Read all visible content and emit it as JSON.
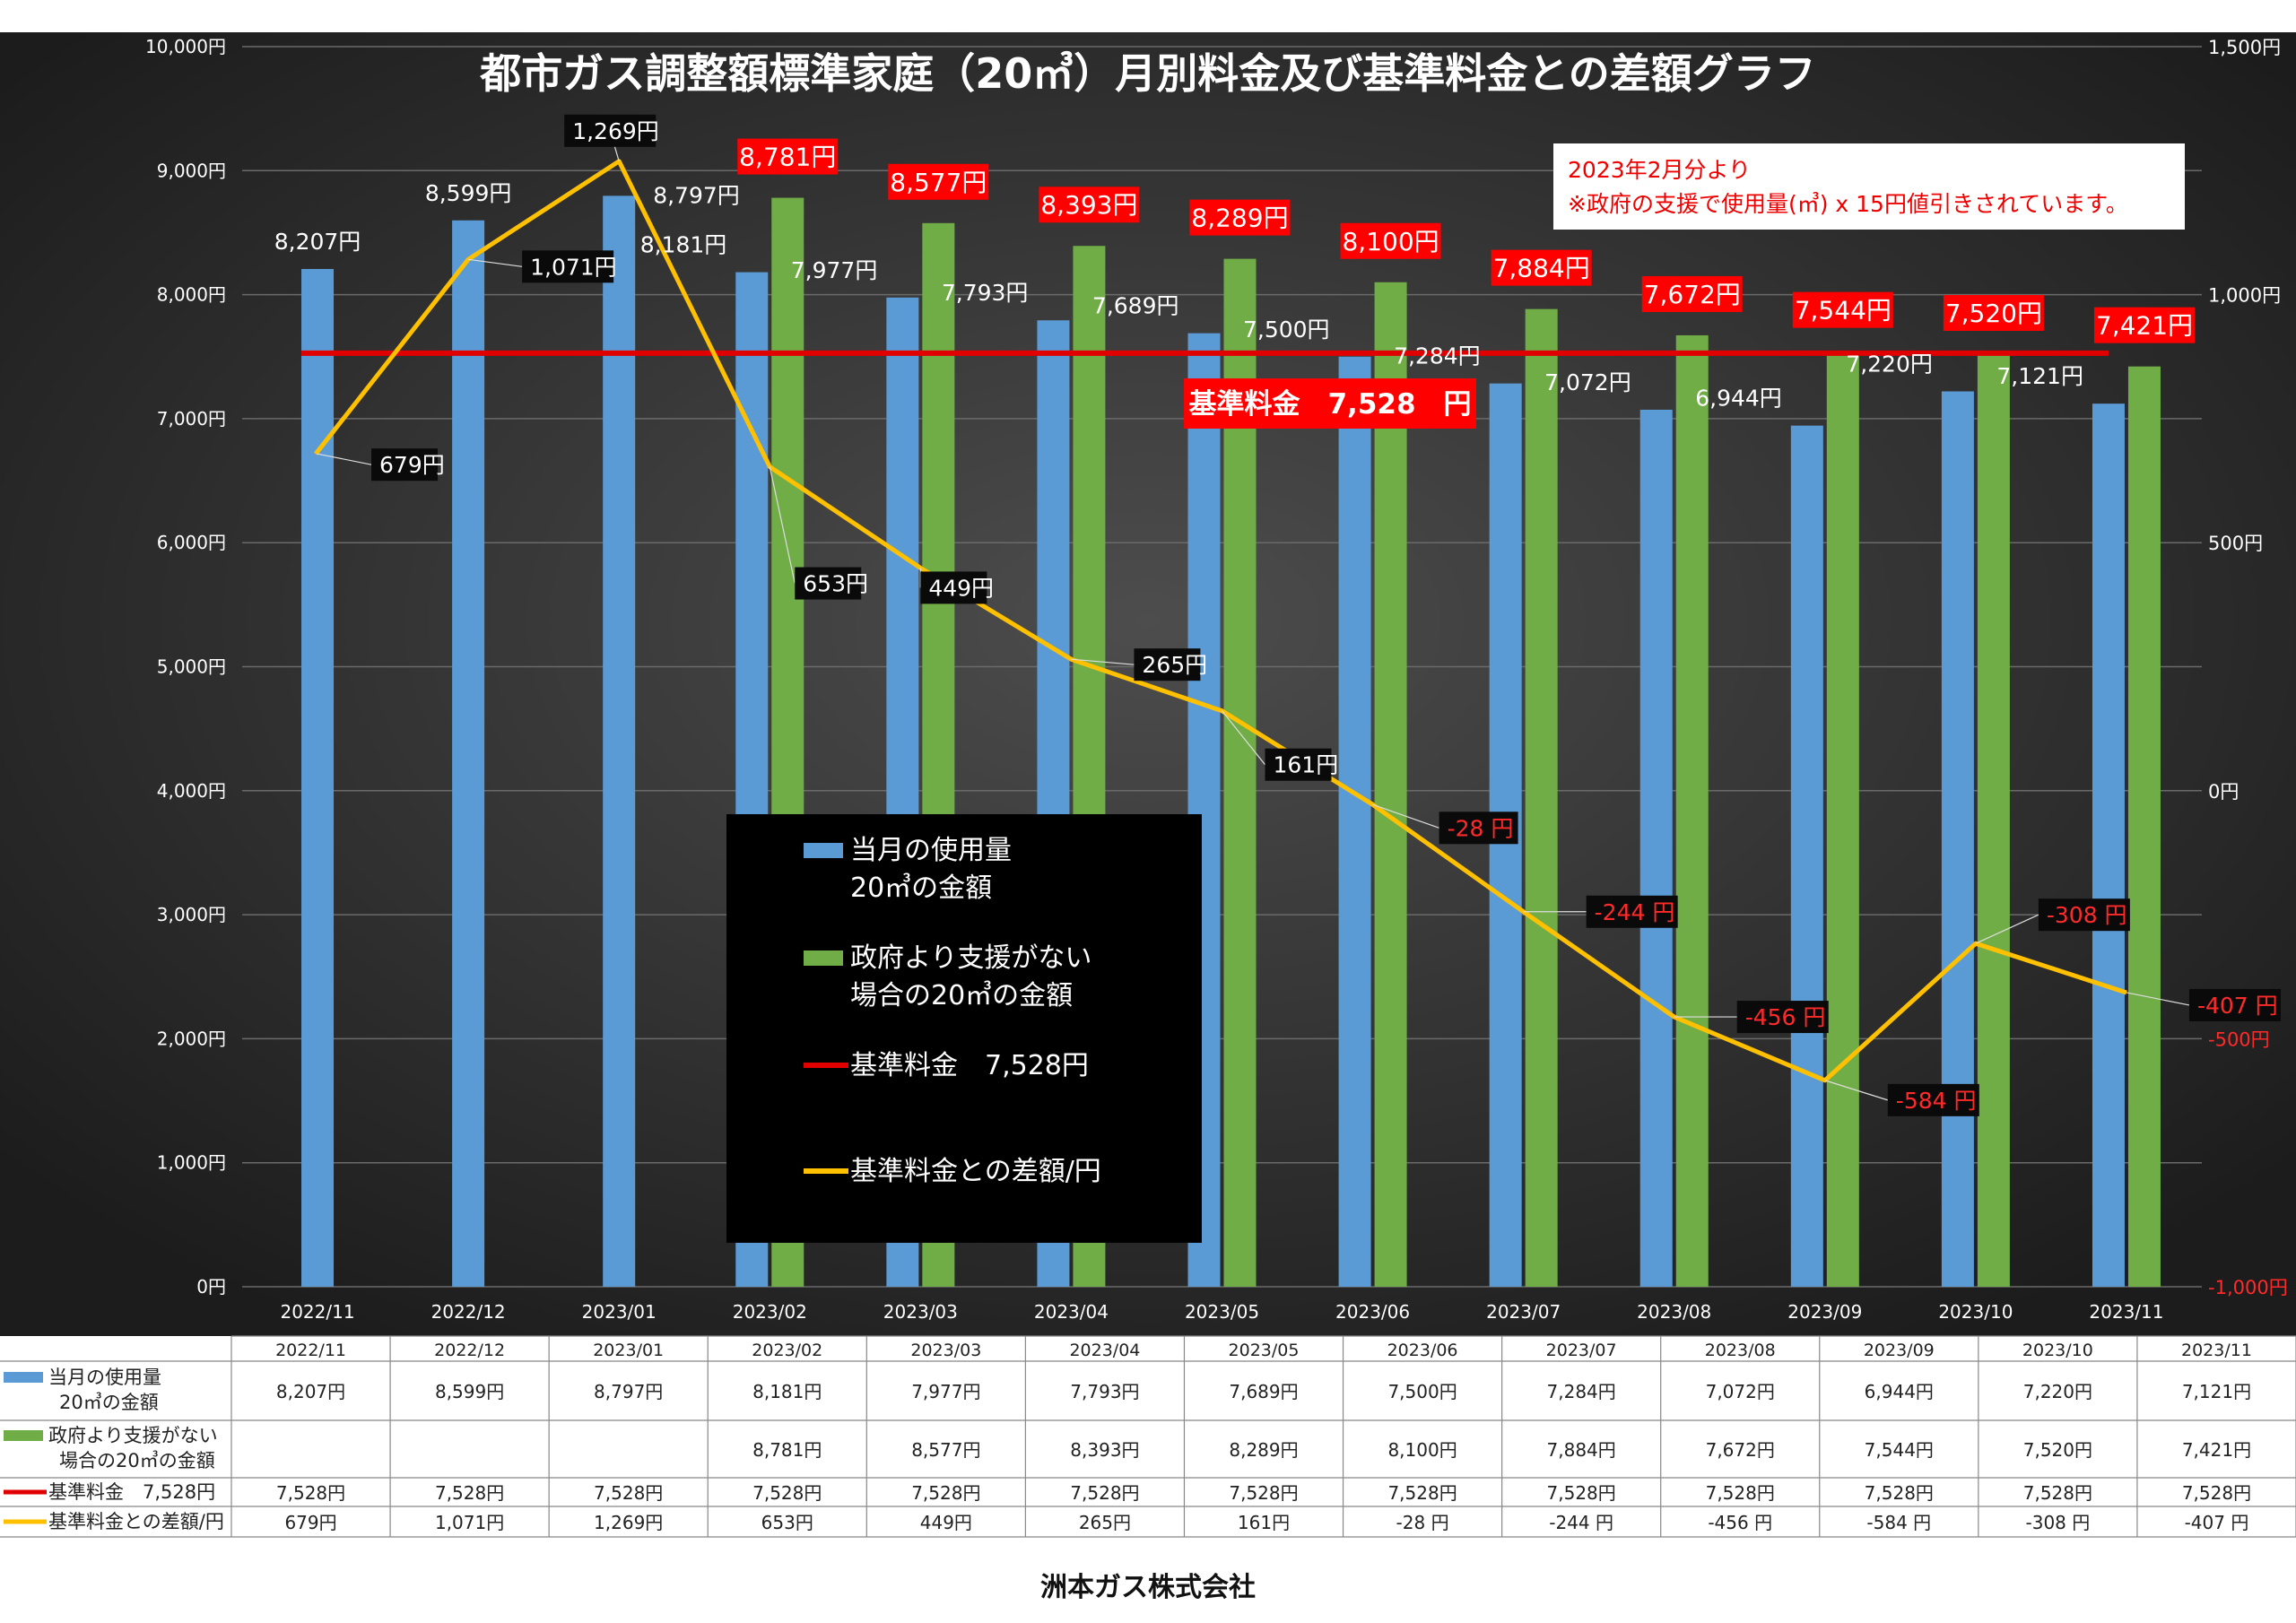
{
  "chart_data": {
    "type": "bar",
    "title": "都市ガス調整額標準家庭（20㎥）月別料金及び基準料金との差額グラフ",
    "categories": [
      "2022/11",
      "2022/12",
      "2023/01",
      "2023/02",
      "2023/03",
      "2023/04",
      "2023/05",
      "2023/06",
      "2023/07",
      "2023/08",
      "2023/09",
      "2023/10",
      "2023/11"
    ],
    "left_axis": {
      "ylim": [
        0,
        10000
      ],
      "ticks": [
        "0円",
        "1,000円",
        "2,000円",
        "3,000円",
        "4,000円",
        "5,000円",
        "6,000円",
        "7,000円",
        "8,000円",
        "9,000円",
        "10,000円"
      ]
    },
    "right_axis": {
      "ylim": [
        -1000,
        1500
      ],
      "ticks": [
        "-1,000円",
        "-500円",
        "0円",
        "500円",
        "1,000円",
        "1,500円"
      ]
    },
    "series": [
      {
        "name": "当月の使用量 20㎥の金額",
        "name_lines": [
          "当月の使用量",
          "20㎥の金額"
        ],
        "type": "bar",
        "axis": "left",
        "color": "#5b9bd5",
        "values": [
          8207,
          8599,
          8797,
          8181,
          7977,
          7793,
          7689,
          7500,
          7284,
          7072,
          6944,
          7220,
          7121
        ],
        "labels": [
          "8,207円",
          "8,599円",
          "8,797円",
          "8,181円",
          "7,977円",
          "7,793円",
          "7,689円",
          "7,500円",
          "7,284円",
          "7,072円",
          "6,944円",
          "7,220円",
          "7,121円"
        ]
      },
      {
        "name": "政府より支援がない 場合の20㎥の金額",
        "name_lines": [
          "政府より支援がない",
          "場合の20㎥の金額"
        ],
        "type": "bar",
        "axis": "left",
        "color": "#70ad47",
        "values": [
          null,
          null,
          null,
          8781,
          8577,
          8393,
          8289,
          8100,
          7884,
          7672,
          7544,
          7520,
          7421
        ],
        "labels": [
          "",
          "",
          "",
          "8,781円",
          "8,577円",
          "8,393円",
          "8,289円",
          "8,100円",
          "7,884円",
          "7,672円",
          "7,544円",
          "7,520円",
          "7,421円"
        ]
      },
      {
        "name": "基準料金 7,528円",
        "name_lines": [
          "基準料金　7,528円"
        ],
        "type": "line",
        "axis": "left",
        "color": "#e00000",
        "values": [
          7528,
          7528,
          7528,
          7528,
          7528,
          7528,
          7528,
          7528,
          7528,
          7528,
          7528,
          7528,
          7528
        ],
        "labels": [
          "7,528円",
          "7,528円",
          "7,528円",
          "7,528円",
          "7,528円",
          "7,528円",
          "7,528円",
          "7,528円",
          "7,528円",
          "7,528円",
          "7,528円",
          "7,528円",
          "7,528円"
        ]
      },
      {
        "name": "基準料金との差額/円",
        "name_lines": [
          "基準料金との差額/円"
        ],
        "type": "line",
        "axis": "right",
        "color": "#ffc000",
        "values": [
          679,
          1071,
          1269,
          653,
          449,
          265,
          161,
          -28,
          -244,
          -456,
          -584,
          -308,
          -407
        ],
        "labels": [
          "679円",
          "1,071円",
          "1,269円",
          "653円",
          "449円",
          "265円",
          "161円",
          "-28 円",
          "-244 円",
          "-456 円",
          "-584 円",
          "-308 円",
          "-407 円"
        ]
      }
    ],
    "annotations": {
      "base_rate_label": "基準料金　7,528　円",
      "note_lines": [
        "2023年2月分より",
        "※政府の支援で使用量(㎥) x 15円値引きされています。"
      ]
    },
    "legend_placement": "center",
    "grid": true
  },
  "table": {
    "row_labels": [
      [
        "当月の使用量",
        "20㎥の金額"
      ],
      [
        "政府より支援がない",
        "場合の20㎥の金額"
      ],
      [
        "基準料金　7,528円"
      ],
      [
        "基準料金との差額/円"
      ]
    ]
  },
  "footer": {
    "company": "洲本ガス株式会社"
  },
  "colors": {
    "background_center": "#4a4a4a",
    "background_edge": "#1c1c1c",
    "red_label_bg": "#ff0000",
    "dark_label_bg": "#0a0a0a"
  }
}
